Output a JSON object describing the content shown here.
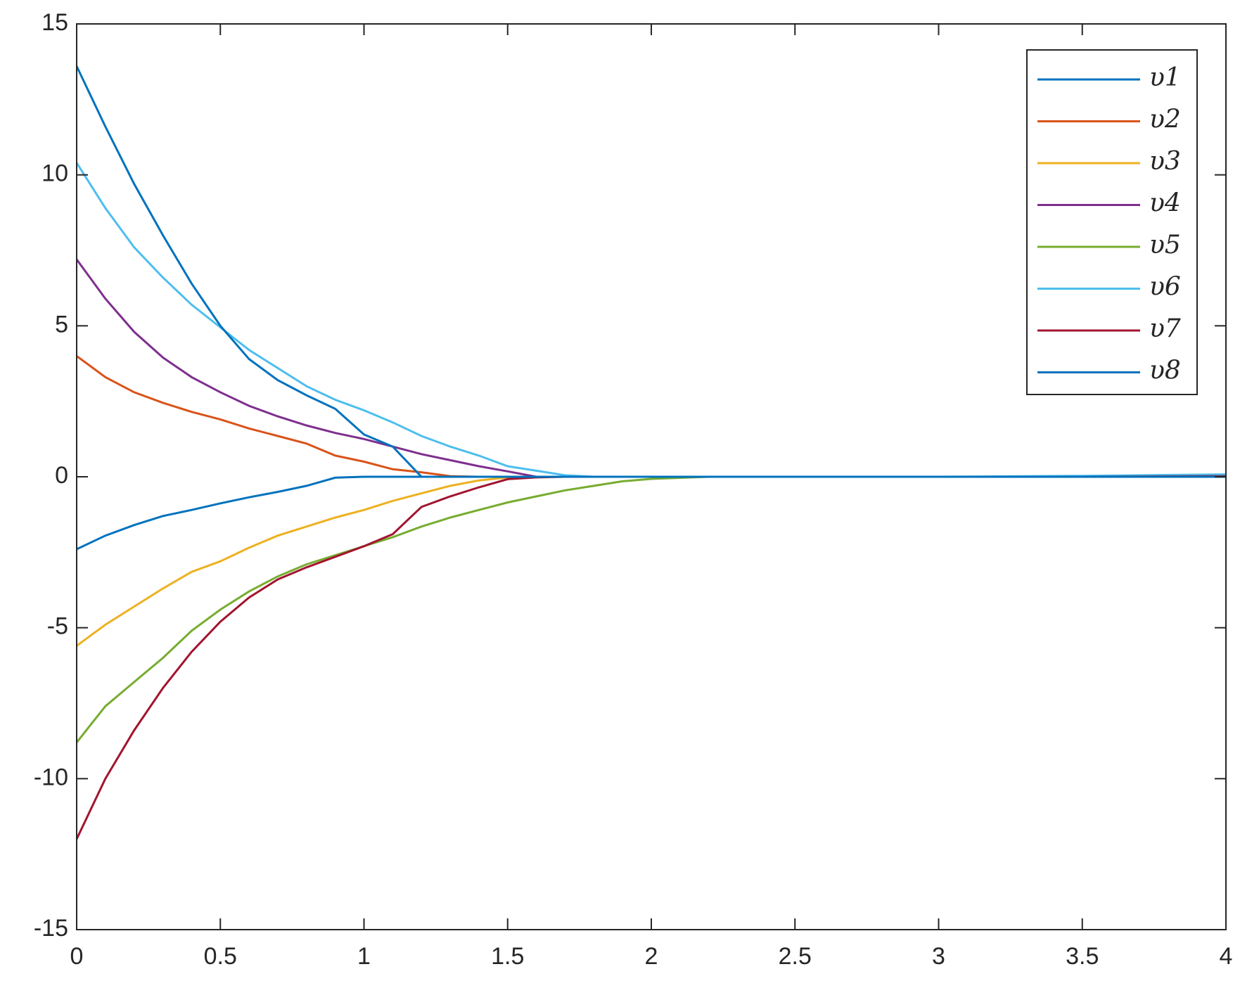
{
  "chart_data": {
    "type": "line",
    "x": [
      0,
      0.1,
      0.2,
      0.3,
      0.4,
      0.5,
      0.6,
      0.7,
      0.8,
      0.9,
      1.0,
      1.1,
      1.2,
      1.3,
      1.4,
      1.5,
      1.6,
      1.7,
      1.8,
      1.9,
      2.0,
      2.2,
      2.5,
      3,
      3.5,
      4
    ],
    "series": [
      {
        "name": "υ1",
        "color": "#0072BD",
        "values": [
          -2.4,
          -1.95,
          -1.6,
          -1.3,
          -1.1,
          -0.88,
          -0.68,
          -0.5,
          -0.3,
          -0.03,
          0,
          0,
          0,
          0,
          0,
          0,
          0,
          0,
          0,
          0,
          0,
          0,
          0,
          0,
          0,
          0
        ]
      },
      {
        "name": "υ2",
        "color": "#D95319",
        "values": [
          4.0,
          3.3,
          2.8,
          2.45,
          2.15,
          1.9,
          1.6,
          1.35,
          1.1,
          0.7,
          0.5,
          0.25,
          0.15,
          0.02,
          0,
          0,
          0,
          0,
          0,
          0,
          0,
          0,
          0,
          0,
          0,
          0
        ]
      },
      {
        "name": "υ3",
        "color": "#EDB120",
        "values": [
          -5.6,
          -4.9,
          -4.3,
          -3.7,
          -3.15,
          -2.8,
          -2.35,
          -1.95,
          -1.65,
          -1.35,
          -1.1,
          -0.8,
          -0.55,
          -0.3,
          -0.12,
          -0.02,
          0,
          0,
          0,
          0,
          0,
          0,
          0,
          0,
          0,
          0
        ]
      },
      {
        "name": "υ4",
        "color": "#7E2F8E",
        "values": [
          7.2,
          5.9,
          4.8,
          3.95,
          3.3,
          2.8,
          2.35,
          2.0,
          1.7,
          1.45,
          1.25,
          1.0,
          0.75,
          0.55,
          0.35,
          0.18,
          0,
          0,
          0,
          0,
          0,
          0,
          0,
          0,
          0,
          0
        ]
      },
      {
        "name": "υ5",
        "color": "#77AC30",
        "values": [
          -8.8,
          -7.6,
          -6.8,
          -6.0,
          -5.1,
          -4.4,
          -3.8,
          -3.3,
          -2.9,
          -2.6,
          -2.3,
          -2.0,
          -1.65,
          -1.35,
          -1.1,
          -0.85,
          -0.65,
          -0.45,
          -0.3,
          -0.15,
          -0.07,
          0,
          0,
          0,
          0,
          0
        ]
      },
      {
        "name": "υ6",
        "color": "#4DBEEE",
        "values": [
          10.4,
          8.9,
          7.6,
          6.6,
          5.7,
          4.95,
          4.2,
          3.6,
          3.0,
          2.55,
          2.2,
          1.8,
          1.35,
          1.0,
          0.7,
          0.35,
          0.2,
          0.05,
          0,
          0,
          0,
          0,
          0,
          0,
          0.03,
          0.08
        ]
      },
      {
        "name": "υ7",
        "color": "#A2142F",
        "values": [
          -12,
          -10.0,
          -8.4,
          -7.0,
          -5.8,
          -4.8,
          -4.0,
          -3.4,
          -3.0,
          -2.65,
          -2.3,
          -1.9,
          -1.0,
          -0.65,
          -0.35,
          -0.08,
          -0.02,
          0,
          0,
          0,
          0,
          0,
          0,
          0,
          0,
          0.02
        ]
      },
      {
        "name": "υ8",
        "color": "#0072BD",
        "values": [
          13.6,
          11.6,
          9.7,
          8.0,
          6.4,
          5.0,
          3.9,
          3.2,
          2.7,
          2.25,
          1.4,
          1.0,
          0,
          0,
          0,
          0,
          0,
          0,
          0,
          0,
          0,
          0,
          0,
          0,
          0,
          0
        ]
      }
    ],
    "xlim": [
      0,
      4
    ],
    "xticks": [
      0,
      0.5,
      1,
      1.5,
      2,
      2.5,
      3,
      3.5,
      4
    ],
    "ylim": [
      -15,
      15
    ],
    "yticks": [
      -15,
      -10,
      -5,
      0,
      5,
      10,
      15
    ],
    "legend": "upper right"
  }
}
